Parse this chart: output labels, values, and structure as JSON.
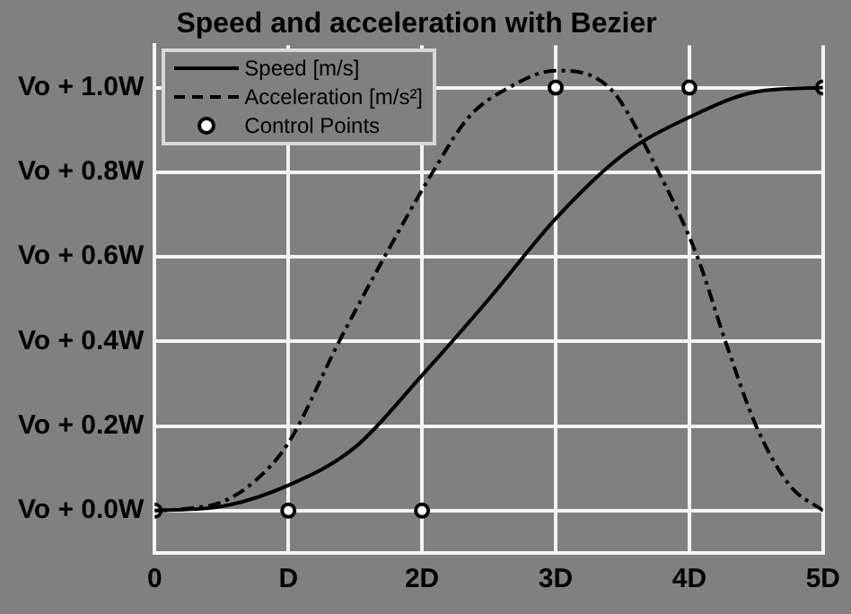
{
  "chart_data": {
    "type": "line",
    "title": "Speed and acceleration with Bezier",
    "xlim": [
      0,
      5
    ],
    "xticks": [
      0,
      {
        "value": 1,
        "label": "D"
      },
      {
        "value": 2,
        "label": "2D"
      },
      {
        "value": 3,
        "label": "3D"
      },
      {
        "value": 4,
        "label": "4D"
      },
      {
        "value": 5,
        "label": "5D"
      }
    ],
    "ylim": [
      -0.1,
      1.1
    ],
    "yticks": [
      {
        "value": 0,
        "label": "Vo + 0.0W"
      },
      {
        "value": 0.2,
        "label": "Vo + 0.2W"
      },
      {
        "value": 0.4,
        "label": "Vo + 0.4W"
      },
      {
        "value": 0.6,
        "label": "Vo + 0.6W"
      },
      {
        "value": 0.8,
        "label": "Vo + 0.8W"
      },
      {
        "value": 1,
        "label": "Vo + 1.0W"
      }
    ],
    "grid": true,
    "legend": "top left",
    "series": [
      {
        "name": "Speed [m/s]",
        "color": "#000000",
        "line_style": "solid",
        "marker": "none",
        "x": [
          0,
          0.5,
          1,
          1.5,
          2,
          2.5,
          3,
          3.5,
          4,
          4.5,
          5
        ],
        "values": [
          0,
          0.01,
          0.06,
          0.15,
          0.32,
          0.5,
          0.69,
          0.84,
          0.93,
          0.99,
          1
        ]
      },
      {
        "name": "Acceleration [m/s²]",
        "color": "#000000",
        "line_style": "dashed",
        "marker": "none",
        "x": [
          0,
          0.25,
          0.5,
          0.75,
          1,
          1.38,
          1.72,
          2.08,
          2.35,
          2.65,
          3,
          3.4,
          3.77,
          4.06,
          4.27,
          4.5,
          4.75,
          5
        ],
        "values": [
          0,
          0.005,
          0.02,
          0.07,
          0.16,
          0.4,
          0.6,
          0.8,
          0.93,
          1,
          1.04,
          1,
          0.8,
          0.6,
          0.4,
          0.2,
          0.06,
          0
        ]
      },
      {
        "name": "Control Points",
        "type": "scatter",
        "color": "#000000",
        "marker": "circle",
        "x": [
          0,
          1,
          2,
          3,
          4,
          5
        ],
        "values": [
          0,
          0,
          0,
          1,
          1,
          1
        ]
      }
    ]
  }
}
